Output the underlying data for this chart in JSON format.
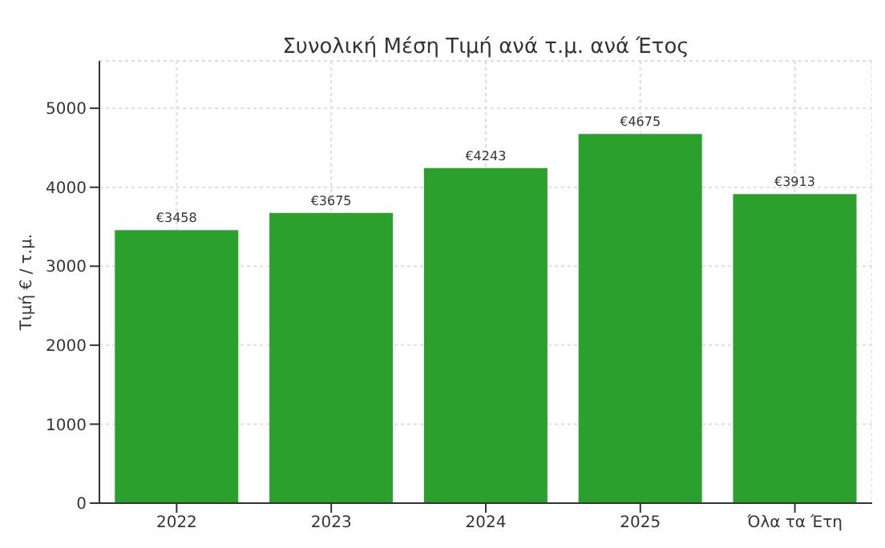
{
  "chart_data": {
    "type": "bar",
    "title": "Συνολική Μέση Τιμή ανά τ.μ. ανά Έτος",
    "ylabel": "Τιμή € / τ.μ.",
    "categories": [
      "2022",
      "2023",
      "2024",
      "2025",
      "Όλα τα Έτη"
    ],
    "values": [
      3458,
      3675,
      4243,
      4675,
      3913
    ],
    "value_labels": [
      "€3458",
      "€3675",
      "€4243",
      "€4675",
      "€3913"
    ],
    "color": "#2ca02c",
    "ylim": [
      0,
      5600
    ],
    "yticks": [
      0,
      1000,
      2000,
      3000,
      4000,
      5000
    ],
    "grid": true
  }
}
